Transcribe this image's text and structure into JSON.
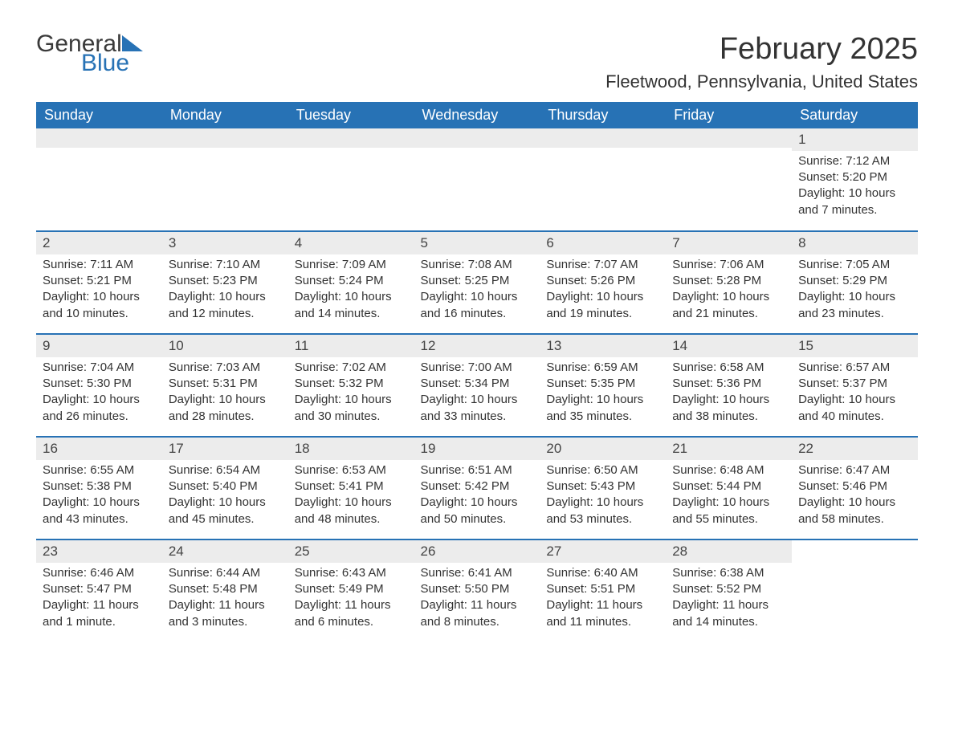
{
  "logo": {
    "word1": "General",
    "word2": "Blue"
  },
  "title": "February 2025",
  "location": "Fleetwood, Pennsylvania, United States",
  "weekdays": [
    "Sunday",
    "Monday",
    "Tuesday",
    "Wednesday",
    "Thursday",
    "Friday",
    "Saturday"
  ],
  "colors": {
    "brand_blue": "#2772b5",
    "header_row_bg": "#2772b5",
    "header_row_text": "#ffffff",
    "daynum_bg": "#ececec",
    "text": "#333333",
    "logo_gray": "#3a3a3a"
  },
  "weeks": [
    [
      {
        "day": "",
        "content": ""
      },
      {
        "day": "",
        "content": ""
      },
      {
        "day": "",
        "content": ""
      },
      {
        "day": "",
        "content": ""
      },
      {
        "day": "",
        "content": ""
      },
      {
        "day": "",
        "content": ""
      },
      {
        "day": "1",
        "sunrise": "Sunrise: 7:12 AM",
        "sunset": "Sunset: 5:20 PM",
        "daylight": "Daylight: 10 hours and 7 minutes."
      }
    ],
    [
      {
        "day": "2",
        "sunrise": "Sunrise: 7:11 AM",
        "sunset": "Sunset: 5:21 PM",
        "daylight": "Daylight: 10 hours and 10 minutes."
      },
      {
        "day": "3",
        "sunrise": "Sunrise: 7:10 AM",
        "sunset": "Sunset: 5:23 PM",
        "daylight": "Daylight: 10 hours and 12 minutes."
      },
      {
        "day": "4",
        "sunrise": "Sunrise: 7:09 AM",
        "sunset": "Sunset: 5:24 PM",
        "daylight": "Daylight: 10 hours and 14 minutes."
      },
      {
        "day": "5",
        "sunrise": "Sunrise: 7:08 AM",
        "sunset": "Sunset: 5:25 PM",
        "daylight": "Daylight: 10 hours and 16 minutes."
      },
      {
        "day": "6",
        "sunrise": "Sunrise: 7:07 AM",
        "sunset": "Sunset: 5:26 PM",
        "daylight": "Daylight: 10 hours and 19 minutes."
      },
      {
        "day": "7",
        "sunrise": "Sunrise: 7:06 AM",
        "sunset": "Sunset: 5:28 PM",
        "daylight": "Daylight: 10 hours and 21 minutes."
      },
      {
        "day": "8",
        "sunrise": "Sunrise: 7:05 AM",
        "sunset": "Sunset: 5:29 PM",
        "daylight": "Daylight: 10 hours and 23 minutes."
      }
    ],
    [
      {
        "day": "9",
        "sunrise": "Sunrise: 7:04 AM",
        "sunset": "Sunset: 5:30 PM",
        "daylight": "Daylight: 10 hours and 26 minutes."
      },
      {
        "day": "10",
        "sunrise": "Sunrise: 7:03 AM",
        "sunset": "Sunset: 5:31 PM",
        "daylight": "Daylight: 10 hours and 28 minutes."
      },
      {
        "day": "11",
        "sunrise": "Sunrise: 7:02 AM",
        "sunset": "Sunset: 5:32 PM",
        "daylight": "Daylight: 10 hours and 30 minutes."
      },
      {
        "day": "12",
        "sunrise": "Sunrise: 7:00 AM",
        "sunset": "Sunset: 5:34 PM",
        "daylight": "Daylight: 10 hours and 33 minutes."
      },
      {
        "day": "13",
        "sunrise": "Sunrise: 6:59 AM",
        "sunset": "Sunset: 5:35 PM",
        "daylight": "Daylight: 10 hours and 35 minutes."
      },
      {
        "day": "14",
        "sunrise": "Sunrise: 6:58 AM",
        "sunset": "Sunset: 5:36 PM",
        "daylight": "Daylight: 10 hours and 38 minutes."
      },
      {
        "day": "15",
        "sunrise": "Sunrise: 6:57 AM",
        "sunset": "Sunset: 5:37 PM",
        "daylight": "Daylight: 10 hours and 40 minutes."
      }
    ],
    [
      {
        "day": "16",
        "sunrise": "Sunrise: 6:55 AM",
        "sunset": "Sunset: 5:38 PM",
        "daylight": "Daylight: 10 hours and 43 minutes."
      },
      {
        "day": "17",
        "sunrise": "Sunrise: 6:54 AM",
        "sunset": "Sunset: 5:40 PM",
        "daylight": "Daylight: 10 hours and 45 minutes."
      },
      {
        "day": "18",
        "sunrise": "Sunrise: 6:53 AM",
        "sunset": "Sunset: 5:41 PM",
        "daylight": "Daylight: 10 hours and 48 minutes."
      },
      {
        "day": "19",
        "sunrise": "Sunrise: 6:51 AM",
        "sunset": "Sunset: 5:42 PM",
        "daylight": "Daylight: 10 hours and 50 minutes."
      },
      {
        "day": "20",
        "sunrise": "Sunrise: 6:50 AM",
        "sunset": "Sunset: 5:43 PM",
        "daylight": "Daylight: 10 hours and 53 minutes."
      },
      {
        "day": "21",
        "sunrise": "Sunrise: 6:48 AM",
        "sunset": "Sunset: 5:44 PM",
        "daylight": "Daylight: 10 hours and 55 minutes."
      },
      {
        "day": "22",
        "sunrise": "Sunrise: 6:47 AM",
        "sunset": "Sunset: 5:46 PM",
        "daylight": "Daylight: 10 hours and 58 minutes."
      }
    ],
    [
      {
        "day": "23",
        "sunrise": "Sunrise: 6:46 AM",
        "sunset": "Sunset: 5:47 PM",
        "daylight": "Daylight: 11 hours and 1 minute."
      },
      {
        "day": "24",
        "sunrise": "Sunrise: 6:44 AM",
        "sunset": "Sunset: 5:48 PM",
        "daylight": "Daylight: 11 hours and 3 minutes."
      },
      {
        "day": "25",
        "sunrise": "Sunrise: 6:43 AM",
        "sunset": "Sunset: 5:49 PM",
        "daylight": "Daylight: 11 hours and 6 minutes."
      },
      {
        "day": "26",
        "sunrise": "Sunrise: 6:41 AM",
        "sunset": "Sunset: 5:50 PM",
        "daylight": "Daylight: 11 hours and 8 minutes."
      },
      {
        "day": "27",
        "sunrise": "Sunrise: 6:40 AM",
        "sunset": "Sunset: 5:51 PM",
        "daylight": "Daylight: 11 hours and 11 minutes."
      },
      {
        "day": "28",
        "sunrise": "Sunrise: 6:38 AM",
        "sunset": "Sunset: 5:52 PM",
        "daylight": "Daylight: 11 hours and 14 minutes."
      },
      {
        "day": "",
        "content": ""
      }
    ]
  ]
}
